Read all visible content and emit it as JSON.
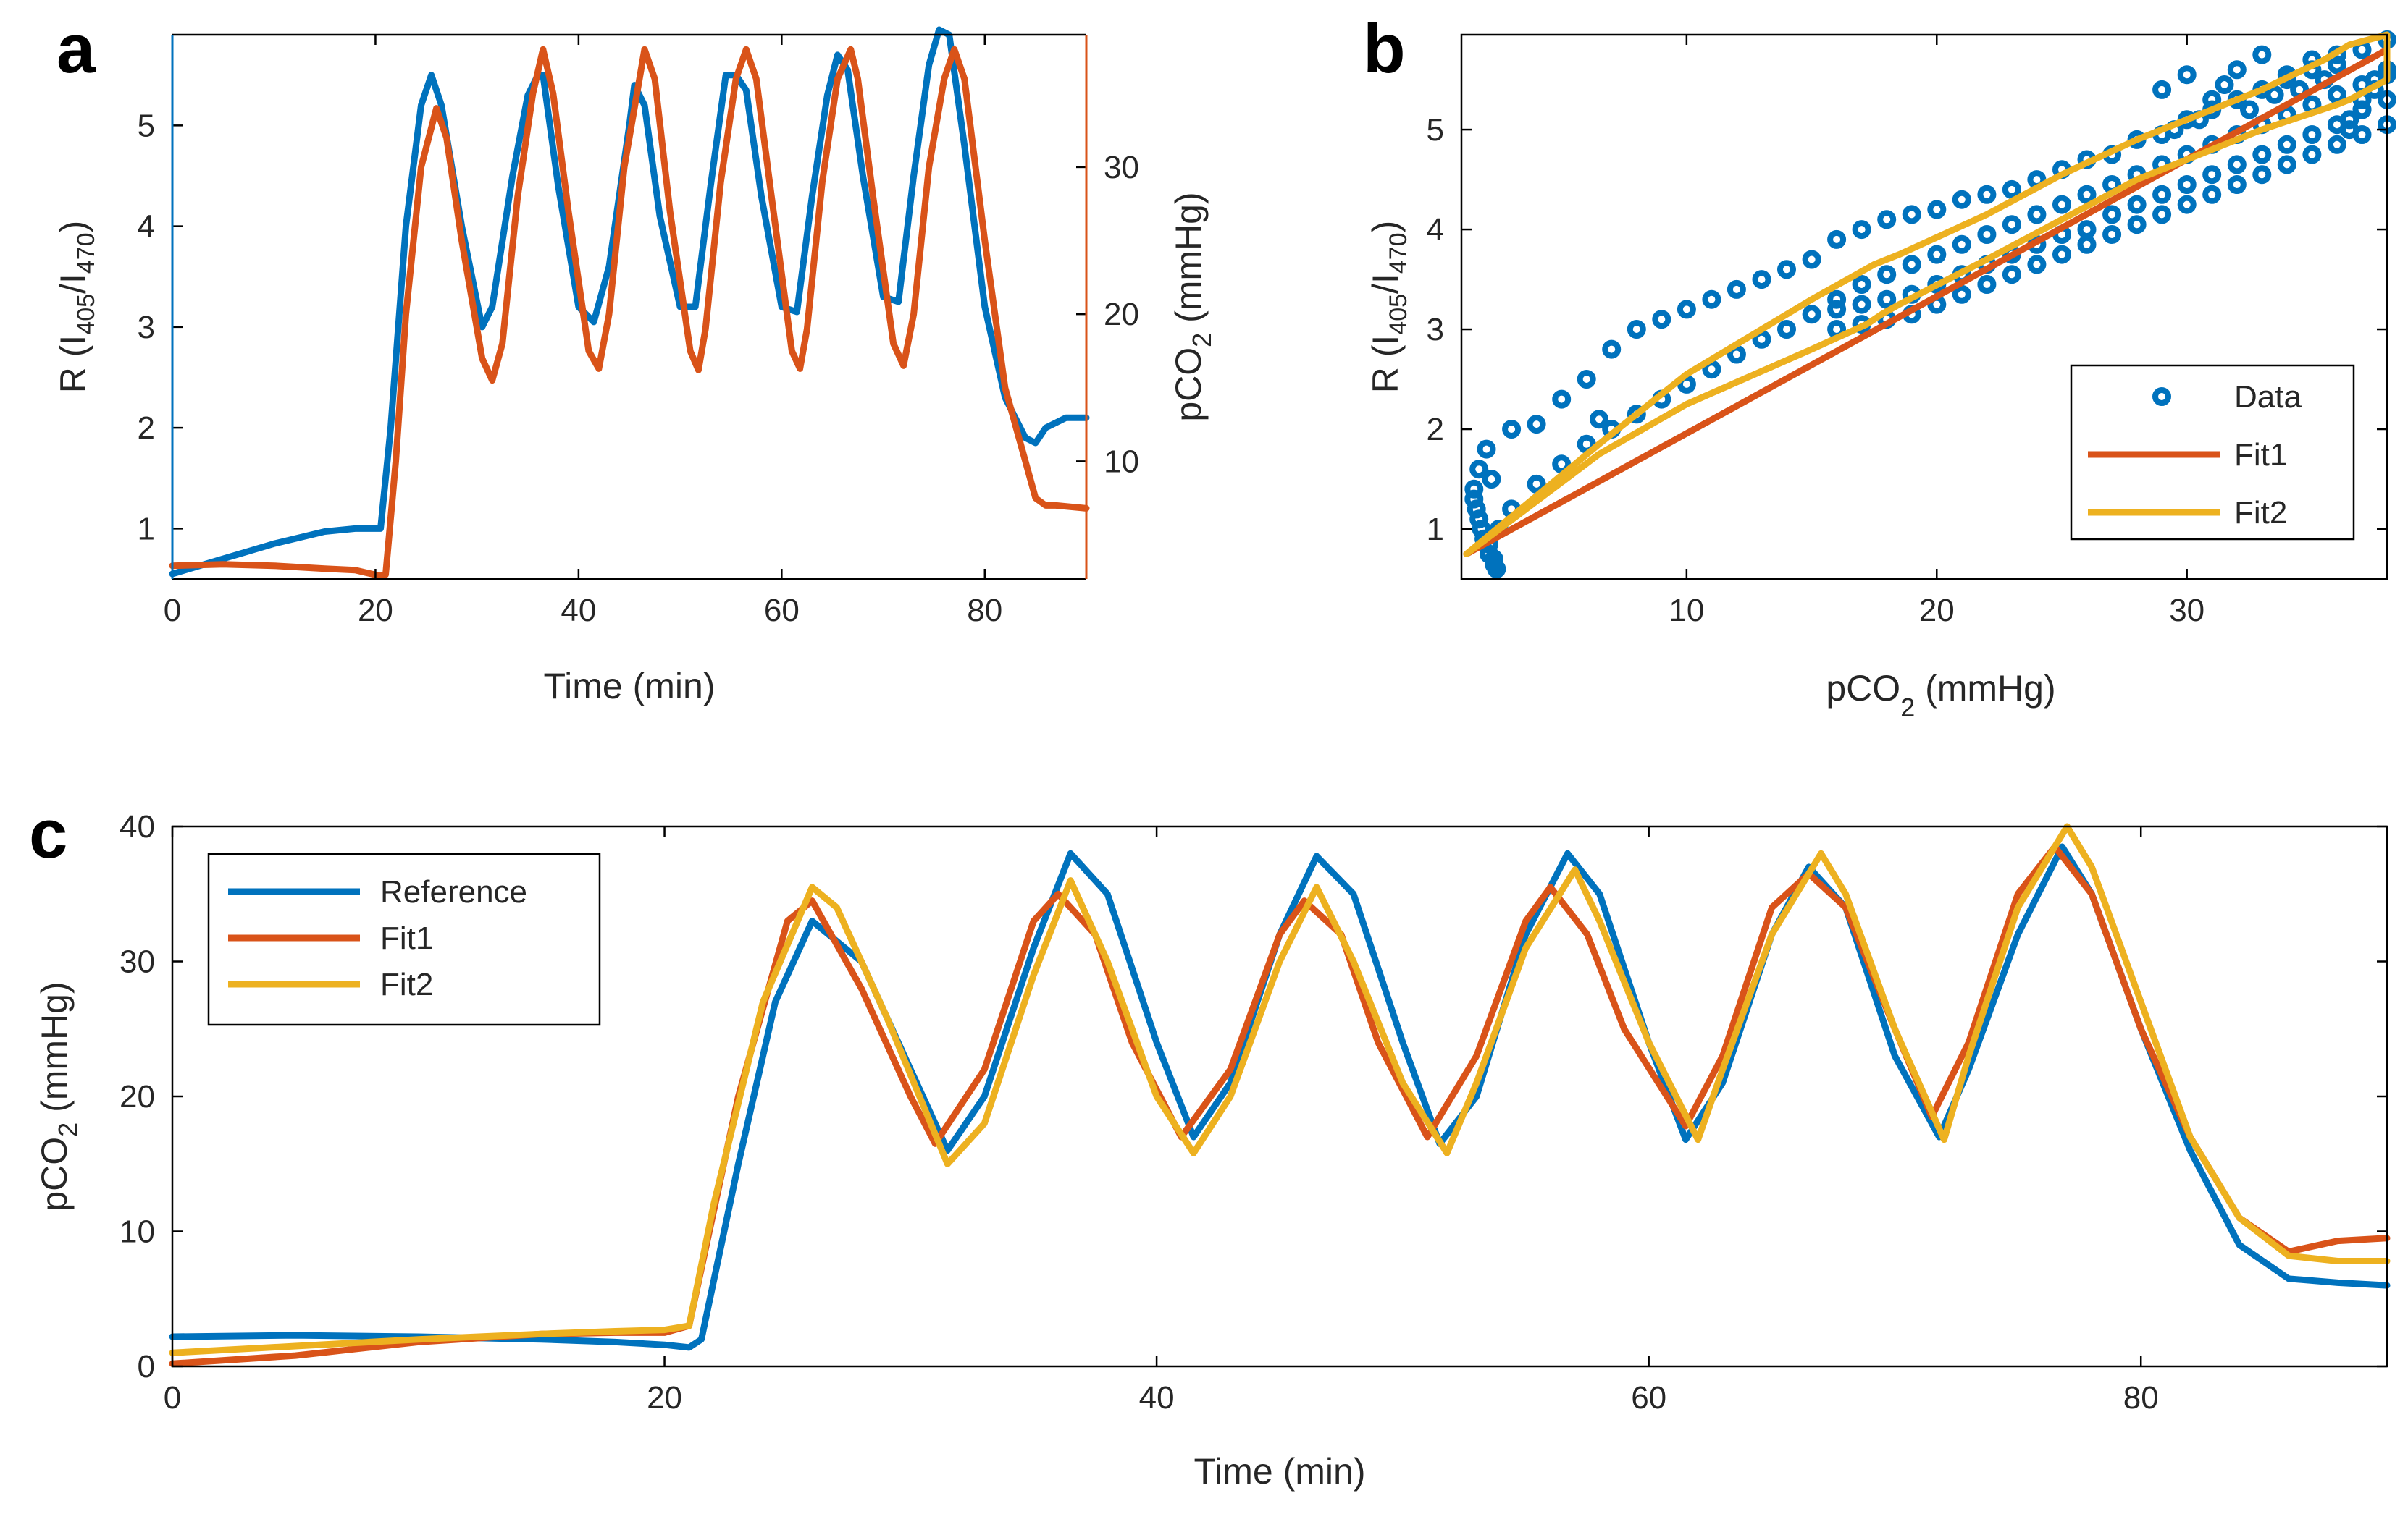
{
  "colors": {
    "blue": "#0072BD",
    "orange": "#D95319",
    "yellow": "#EDB120"
  },
  "chart_data": [
    {
      "panel": "a",
      "type": "line",
      "xlabel": "Time (min)",
      "ylabel_left_parts": [
        "R (I",
        "405",
        "/I",
        "470",
        ")"
      ],
      "ylabel_right_parts": [
        "pCO",
        "2",
        " (mmHg)"
      ],
      "xlim": [
        0,
        90
      ],
      "ylim_left": [
        0.5,
        5.9
      ],
      "ylim_right": [
        2,
        39
      ],
      "xticks": [
        0,
        20,
        40,
        60,
        80
      ],
      "yticks_left": [
        1,
        2,
        3,
        4,
        5
      ],
      "yticks_right": [
        10,
        20,
        30
      ],
      "series": [
        {
          "name": "R (I405/I470)",
          "axis": "left",
          "color": "blue",
          "x": [
            0,
            5,
            10,
            15,
            18,
            20.5,
            21.5,
            23,
            24.5,
            25.5,
            26.5,
            28.5,
            30.5,
            31.5,
            33.5,
            35,
            36,
            36.5,
            38,
            40,
            41.5,
            43,
            45,
            45.5,
            46.5,
            48,
            50,
            51.5,
            53,
            54.5,
            55.5,
            56.5,
            58,
            60,
            61.5,
            63,
            64.5,
            65.5,
            66.5,
            68,
            70,
            71.5,
            73,
            74.5,
            75.5,
            76.5,
            78,
            80,
            82,
            84,
            85,
            86,
            88,
            90
          ],
          "y": [
            0.55,
            0.7,
            0.85,
            0.97,
            1.0,
            1.0,
            2.0,
            4.0,
            5.2,
            5.5,
            5.2,
            4.0,
            3.0,
            3.2,
            4.5,
            5.3,
            5.5,
            5.5,
            4.4,
            3.2,
            3.05,
            3.6,
            5.0,
            5.4,
            5.2,
            4.1,
            3.2,
            3.2,
            4.4,
            5.5,
            5.5,
            5.35,
            4.3,
            3.2,
            3.15,
            4.3,
            5.3,
            5.7,
            5.55,
            4.5,
            3.3,
            3.25,
            4.5,
            5.6,
            5.95,
            5.9,
            4.8,
            3.2,
            2.3,
            1.9,
            1.85,
            2.0,
            2.1,
            2.1
          ]
        },
        {
          "name": "pCO2 (mmHg)",
          "axis": "right",
          "color": "orange",
          "x": [
            0,
            5,
            10,
            15,
            18,
            20.5,
            21,
            22,
            23,
            24.5,
            26,
            27,
            28.5,
            30.5,
            31.5,
            32.5,
            34,
            35.5,
            36.5,
            37.5,
            39,
            41,
            42,
            43,
            44.5,
            46,
            46.5,
            47.5,
            49,
            51,
            51.8,
            52.5,
            54,
            55.5,
            56.5,
            57.5,
            59,
            61,
            61.8,
            62.5,
            64,
            65.5,
            66.8,
            67.5,
            69,
            71,
            72,
            73,
            74.5,
            76,
            77,
            78,
            80,
            82,
            84,
            85,
            86,
            87,
            90
          ],
          "y": [
            2.9,
            3.0,
            2.9,
            2.7,
            2.6,
            2.2,
            2.3,
            10,
            20,
            30,
            34,
            32,
            25,
            17,
            15.5,
            18,
            28,
            35,
            38,
            35,
            27,
            17.5,
            16.3,
            20,
            30,
            36,
            38,
            36,
            27,
            17.5,
            16.2,
            19,
            29,
            36,
            38,
            36,
            28,
            17.5,
            16.3,
            19,
            29,
            36,
            38,
            36,
            28,
            18,
            16.5,
            20,
            30,
            36,
            38,
            36,
            25,
            15,
            10,
            7.5,
            7.0,
            7.0,
            6.8
          ]
        }
      ]
    },
    {
      "panel": "b",
      "type": "scatter",
      "xlabel_parts": [
        "pCO",
        "2",
        " (mmHg)"
      ],
      "ylabel_parts": [
        "R (I",
        "405",
        "/I",
        "470",
        ")"
      ],
      "xlim": [
        1,
        38
      ],
      "ylim": [
        0.5,
        5.95
      ],
      "xticks": [
        10,
        20,
        30
      ],
      "yticks": [
        1,
        2,
        3,
        4,
        5
      ],
      "legend": {
        "position": "bottom-right",
        "entries": [
          {
            "label": "Data",
            "style": "marker",
            "color": "blue"
          },
          {
            "label": "Fit1",
            "style": "line",
            "color": "orange"
          },
          {
            "label": "Fit2",
            "style": "line",
            "color": "yellow"
          }
        ]
      },
      "fit1": {
        "x": [
          1.2,
          38
        ],
        "y": [
          0.75,
          5.8
        ]
      },
      "fit2": {
        "x": [
          1.2,
          6.5,
          10,
          15,
          17.5,
          18.5,
          22,
          25,
          28,
          30,
          33,
          35.5,
          36.5,
          38,
          38,
          36.5,
          36,
          33,
          30,
          28,
          25,
          22,
          18.5,
          17.8,
          17.5,
          17.2,
          15,
          10,
          6.5,
          1.2
        ],
        "y": [
          0.75,
          1.85,
          2.55,
          3.3,
          3.65,
          3.75,
          4.15,
          4.55,
          4.9,
          5.1,
          5.4,
          5.7,
          5.85,
          5.95,
          5.5,
          5.3,
          5.25,
          5.0,
          4.7,
          4.5,
          4.1,
          3.7,
          3.25,
          3.15,
          3.1,
          3.05,
          2.8,
          2.25,
          1.75,
          0.75
        ]
      },
      "data": {
        "x": [
          1.5,
          1.7,
          1.9,
          2.1,
          2.3,
          2.4,
          2.3,
          2.1,
          1.8,
          1.6,
          1.5,
          1.7,
          2.0,
          2.2,
          2.5,
          3,
          4,
          5,
          6,
          6.5,
          7,
          8,
          9,
          10,
          11,
          12,
          13,
          14,
          15,
          16,
          17,
          18,
          19,
          20,
          21,
          22,
          23,
          24,
          25,
          26,
          27,
          28,
          29,
          30,
          31,
          32,
          33,
          34,
          35,
          36,
          37,
          38,
          3,
          4,
          5,
          6,
          7,
          8,
          9,
          10,
          11,
          12,
          13,
          14,
          15,
          16,
          17,
          18,
          19,
          20,
          21,
          22,
          23,
          24,
          25,
          26,
          27,
          28,
          29,
          30,
          31,
          32,
          33,
          34,
          35,
          36,
          37,
          38,
          16,
          17,
          18,
          19,
          20,
          21,
          22,
          23,
          24,
          25,
          26,
          27,
          28,
          29,
          30,
          31,
          32,
          33,
          34,
          35,
          36,
          37,
          38,
          16,
          17,
          18,
          19,
          20,
          21,
          22,
          23,
          24,
          25,
          26,
          27,
          28,
          29,
          30,
          31,
          32,
          33,
          34,
          35,
          36,
          37,
          38,
          36.5,
          37,
          37.5,
          38,
          37.5,
          37,
          36.5,
          36,
          35.5,
          35,
          34.5,
          34,
          33.5,
          33,
          32.5,
          32,
          31.5,
          31,
          30.5,
          30,
          29.5,
          29
        ],
        "y": [
          1.3,
          1.1,
          0.9,
          0.75,
          0.65,
          0.6,
          0.7,
          0.85,
          1.0,
          1.2,
          1.4,
          1.6,
          1.8,
          1.5,
          1.0,
          2.0,
          2.05,
          2.3,
          2.5,
          2.1,
          2.8,
          3.0,
          3.1,
          3.2,
          3.3,
          3.4,
          3.5,
          3.6,
          3.7,
          3.9,
          4.0,
          4.1,
          4.15,
          4.2,
          4.3,
          4.35,
          4.4,
          4.5,
          4.6,
          4.7,
          4.75,
          4.9,
          4.95,
          5.1,
          5.2,
          5.3,
          5.4,
          5.5,
          5.6,
          5.75,
          5.8,
          5.9,
          1.2,
          1.45,
          1.65,
          1.85,
          2.0,
          2.15,
          2.3,
          2.45,
          2.6,
          2.75,
          2.9,
          3.0,
          3.15,
          3.3,
          3.45,
          3.55,
          3.65,
          3.75,
          3.85,
          3.95,
          4.05,
          4.15,
          4.25,
          4.35,
          4.45,
          4.55,
          4.65,
          4.75,
          4.85,
          4.95,
          5.05,
          5.15,
          5.25,
          5.35,
          5.45,
          5.55,
          3.0,
          3.05,
          3.1,
          3.15,
          3.25,
          3.35,
          3.45,
          3.55,
          3.65,
          3.75,
          3.85,
          3.95,
          4.05,
          4.15,
          4.25,
          4.35,
          4.45,
          4.55,
          4.65,
          4.75,
          4.85,
          4.95,
          5.05,
          3.2,
          3.25,
          3.3,
          3.35,
          3.45,
          3.55,
          3.65,
          3.75,
          3.85,
          3.95,
          4.0,
          4.15,
          4.25,
          4.35,
          4.45,
          4.55,
          4.65,
          4.75,
          4.85,
          4.95,
          5.05,
          5.2,
          5.3,
          5.0,
          5.2,
          5.4,
          5.6,
          5.5,
          5.3,
          5.1,
          5.65,
          5.5,
          5.7,
          5.4,
          5.55,
          5.35,
          5.75,
          5.2,
          5.6,
          5.45,
          5.3,
          5.1,
          5.55,
          5.0,
          5.4
        ]
      }
    },
    {
      "panel": "c",
      "type": "line",
      "xlabel": "Time (min)",
      "ylabel_parts": [
        "pCO",
        "2",
        " (mmHg)"
      ],
      "xlim": [
        0,
        90
      ],
      "ylim": [
        0,
        40
      ],
      "xticks": [
        0,
        20,
        40,
        60,
        80
      ],
      "yticks": [
        0,
        10,
        20,
        30,
        40
      ],
      "legend": {
        "position": "top-left",
        "entries": [
          {
            "label": "Reference",
            "color": "blue"
          },
          {
            "label": "Fit1",
            "color": "orange"
          },
          {
            "label": "Fit2",
            "color": "yellow"
          }
        ]
      },
      "series": [
        {
          "name": "Reference",
          "color": "blue",
          "x": [
            0,
            5,
            10,
            15,
            18,
            20,
            21,
            21.5,
            23,
            24.5,
            26,
            28,
            30,
            31.5,
            33,
            35,
            36.5,
            38,
            40,
            41.5,
            43,
            45,
            46.5,
            48,
            50,
            51.5,
            53,
            55,
            56.7,
            58,
            60,
            61.5,
            63,
            65,
            66.5,
            68,
            70,
            71.8,
            73,
            75,
            76.8,
            78,
            80,
            82,
            84,
            86,
            88,
            90
          ],
          "y": [
            2.2,
            2.3,
            2.2,
            2.0,
            1.8,
            1.6,
            1.4,
            2,
            15,
            27,
            33,
            30,
            22,
            16,
            20,
            31,
            38,
            35,
            24,
            17,
            21,
            32,
            37.8,
            35,
            24,
            16.5,
            20,
            32,
            38,
            35,
            24,
            16.8,
            21,
            32,
            37,
            34,
            23,
            17,
            22,
            32,
            38.5,
            35,
            25,
            16,
            9,
            6.5,
            6.2,
            6.0
          ]
        },
        {
          "name": "Fit1",
          "color": "orange",
          "x": [
            0,
            5,
            10,
            15,
            18,
            20,
            21,
            23,
            25,
            26,
            28,
            30,
            31,
            33,
            35,
            36,
            37.5,
            39,
            41,
            43,
            45,
            46,
            47.5,
            49,
            51,
            53,
            55,
            56,
            57.5,
            59,
            61.5,
            63,
            65,
            66.5,
            68,
            70,
            71.5,
            73,
            75,
            76.5,
            78,
            80,
            82,
            84,
            86,
            88,
            90
          ],
          "y": [
            0.2,
            0.8,
            1.8,
            2.4,
            2.5,
            2.5,
            3,
            20,
            33,
            34.5,
            28,
            20,
            16.5,
            22,
            33,
            35,
            32,
            24,
            17,
            22,
            32,
            34.5,
            32,
            24,
            17,
            23,
            33,
            35.5,
            32,
            25,
            17.8,
            23,
            34,
            36.5,
            34,
            25,
            18.5,
            24,
            35,
            38.5,
            35,
            25,
            17,
            11,
            8.5,
            9.3,
            9.5
          ]
        },
        {
          "name": "Fit2",
          "color": "yellow",
          "x": [
            0,
            5,
            10,
            15,
            18,
            20,
            21,
            22,
            24,
            26,
            27,
            29,
            31.5,
            33,
            35,
            36.5,
            38,
            40,
            41.5,
            43,
            45,
            46.5,
            48,
            50,
            51.8,
            53,
            55,
            57,
            58,
            60,
            62,
            63,
            65,
            67,
            68,
            70,
            72,
            73,
            75,
            77,
            78,
            80,
            82,
            84,
            86,
            88,
            90
          ],
          "y": [
            1.0,
            1.5,
            2.0,
            2.4,
            2.6,
            2.7,
            3,
            12,
            27,
            35.5,
            34,
            26,
            15,
            18,
            29,
            36,
            30,
            20,
            15.8,
            20,
            30,
            35.5,
            30,
            21,
            15.8,
            21,
            31,
            36.8,
            33,
            24,
            16.8,
            22,
            32,
            38,
            35,
            25,
            16.8,
            23,
            34,
            40,
            37,
            27,
            17,
            11,
            8.2,
            7.8,
            7.8
          ]
        }
      ]
    }
  ]
}
